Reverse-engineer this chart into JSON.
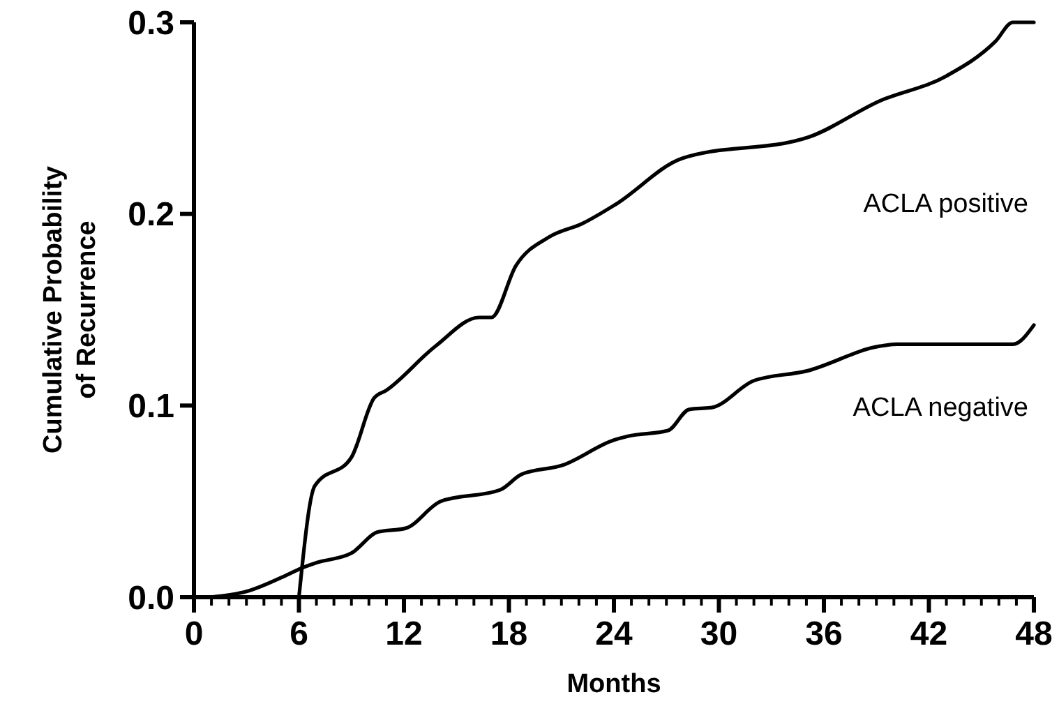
{
  "chart_data": {
    "type": "line",
    "xlabel": "Months",
    "ylabel": "Cumulative Probability of Recurrence",
    "xlim": [
      0,
      48
    ],
    "ylim": [
      0,
      0.3
    ],
    "xticks": [
      0,
      {
        "value": 1,
        "label": null
      },
      {
        "value": 2,
        "label": null
      },
      {
        "value": 3,
        "label": null
      },
      {
        "value": 4,
        "label": null
      },
      {
        "value": 5,
        "label": null
      },
      6,
      {
        "value": 7,
        "label": null
      },
      {
        "value": 8,
        "label": null
      },
      {
        "value": 9,
        "label": null
      },
      {
        "value": 10,
        "label": null
      },
      {
        "value": 11,
        "label": null
      },
      12,
      {
        "value": 13,
        "label": null
      },
      {
        "value": 14,
        "label": null
      },
      {
        "value": 15,
        "label": null
      },
      {
        "value": 16,
        "label": null
      },
      {
        "value": 17,
        "label": null
      },
      18,
      {
        "value": 19,
        "label": null
      },
      {
        "value": 20,
        "label": null
      },
      {
        "value": 21,
        "label": null
      },
      {
        "value": 22,
        "label": null
      },
      {
        "value": 23,
        "label": null
      },
      24,
      {
        "value": 25,
        "label": null
      },
      {
        "value": 26,
        "label": null
      },
      {
        "value": 27,
        "label": null
      },
      {
        "value": 28,
        "label": null
      },
      {
        "value": 29,
        "label": null
      },
      30,
      {
        "value": 31,
        "label": null
      },
      {
        "value": 32,
        "label": null
      },
      {
        "value": 33,
        "label": null
      },
      {
        "value": 34,
        "label": null
      },
      {
        "value": 35,
        "label": null
      },
      36,
      {
        "value": 37,
        "label": null
      },
      {
        "value": 38,
        "label": null
      },
      {
        "value": 39,
        "label": null
      },
      {
        "value": 40,
        "label": null
      },
      {
        "value": 41,
        "label": null
      },
      42,
      {
        "value": 43,
        "label": null
      },
      {
        "value": 44,
        "label": null
      },
      {
        "value": 45,
        "label": null
      },
      {
        "value": 46,
        "label": null
      },
      {
        "value": 47,
        "label": null
      },
      48
    ],
    "yticks": [
      {
        "value": 0,
        "label": "0.0"
      },
      0.1,
      0.2,
      0.3
    ],
    "grid": false,
    "marker": "none",
    "line_style": "solid",
    "series": [
      {
        "name": "ACLA positive",
        "color": "#000000",
        "x": [
          6,
          6.9,
          9,
          10.3,
          11,
          13.8,
          16.3,
          17,
          18.4,
          20.3,
          22.2,
          24.1,
          27.9,
          35.1,
          39.2,
          43,
          45.8,
          46.8,
          48
        ],
        "values": [
          0,
          0.058,
          0.073,
          0.104,
          0.108,
          0.131,
          0.146,
          0.146,
          0.173,
          0.188,
          0.195,
          0.205,
          0.229,
          0.24,
          0.259,
          0.272,
          0.29,
          0.3,
          0.3
        ]
      },
      {
        "name": "ACLA negative",
        "color": "#000000",
        "x": [
          0.9,
          3,
          5.4,
          6.1,
          7,
          9,
          10.5,
          12.1,
          14.1,
          17.5,
          18.7,
          21.1,
          24,
          24.8,
          27.1,
          28.3,
          29.6,
          32,
          35,
          39.2,
          40.2,
          46.8,
          48
        ],
        "values": [
          0,
          0.003,
          0.012,
          0.015,
          0.018,
          0.023,
          0.034,
          0.036,
          0.05,
          0.056,
          0.064,
          0.069,
          0.082,
          0.084,
          0.087,
          0.098,
          0.099,
          0.113,
          0.118,
          0.131,
          0.132,
          0.132,
          0.142
        ]
      }
    ]
  }
}
